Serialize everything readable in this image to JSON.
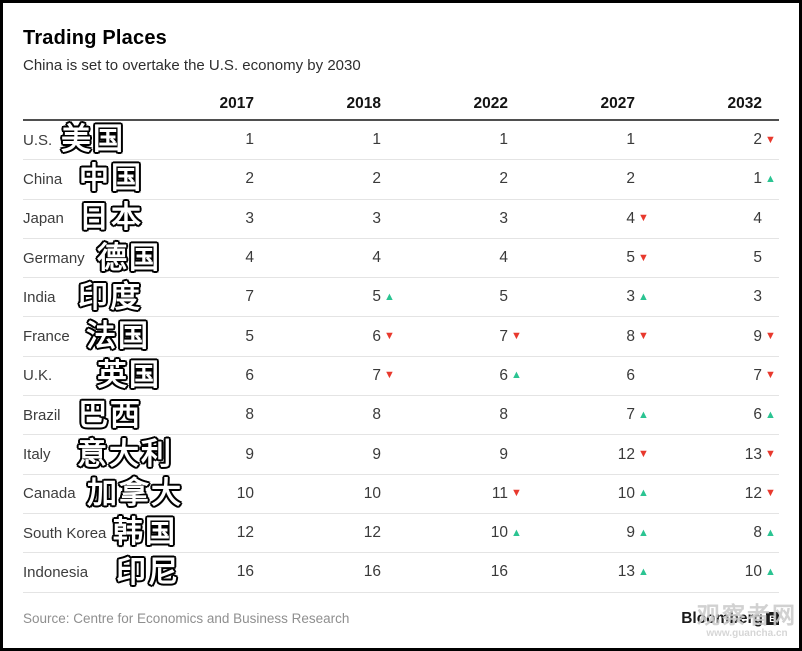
{
  "header": {
    "title": "Trading Places",
    "subtitle": "China is set to overtake the U.S. economy by 2030"
  },
  "table": {
    "year_headers": [
      "2017",
      "2018",
      "2022",
      "2027",
      "2032"
    ],
    "rows": [
      {
        "country": "U.S.",
        "zh": "美国",
        "cells": [
          {
            "v": "1"
          },
          {
            "v": "1"
          },
          {
            "v": "1"
          },
          {
            "v": "1"
          },
          {
            "v": "2",
            "dir": "down"
          }
        ]
      },
      {
        "country": "China",
        "zh": "中国",
        "cells": [
          {
            "v": "2"
          },
          {
            "v": "2"
          },
          {
            "v": "2"
          },
          {
            "v": "2"
          },
          {
            "v": "1",
            "dir": "up"
          }
        ]
      },
      {
        "country": "Japan",
        "zh": "日本",
        "cells": [
          {
            "v": "3"
          },
          {
            "v": "3"
          },
          {
            "v": "3"
          },
          {
            "v": "4",
            "dir": "down"
          },
          {
            "v": "4"
          }
        ]
      },
      {
        "country": "Germany",
        "zh": "德国",
        "cells": [
          {
            "v": "4"
          },
          {
            "v": "4"
          },
          {
            "v": "4"
          },
          {
            "v": "5",
            "dir": "down"
          },
          {
            "v": "5"
          }
        ]
      },
      {
        "country": "India",
        "zh": "印度",
        "cells": [
          {
            "v": "7"
          },
          {
            "v": "5",
            "dir": "up"
          },
          {
            "v": "5"
          },
          {
            "v": "3",
            "dir": "up"
          },
          {
            "v": "3"
          }
        ]
      },
      {
        "country": "France",
        "zh": "法国",
        "cells": [
          {
            "v": "5"
          },
          {
            "v": "6",
            "dir": "down"
          },
          {
            "v": "7",
            "dir": "down"
          },
          {
            "v": "8",
            "dir": "down"
          },
          {
            "v": "9",
            "dir": "down"
          }
        ]
      },
      {
        "country": "U.K.",
        "zh": "英国",
        "cells": [
          {
            "v": "6"
          },
          {
            "v": "7",
            "dir": "down"
          },
          {
            "v": "6",
            "dir": "up"
          },
          {
            "v": "6"
          },
          {
            "v": "7",
            "dir": "down"
          }
        ]
      },
      {
        "country": "Brazil",
        "zh": "巴西",
        "cells": [
          {
            "v": "8"
          },
          {
            "v": "8"
          },
          {
            "v": "8"
          },
          {
            "v": "7",
            "dir": "up"
          },
          {
            "v": "6",
            "dir": "up"
          }
        ]
      },
      {
        "country": "Italy",
        "zh": "意大利",
        "cells": [
          {
            "v": "9"
          },
          {
            "v": "9"
          },
          {
            "v": "9"
          },
          {
            "v": "12",
            "dir": "down"
          },
          {
            "v": "13",
            "dir": "down"
          }
        ]
      },
      {
        "country": "Canada",
        "zh": "加拿大",
        "cells": [
          {
            "v": "10"
          },
          {
            "v": "10"
          },
          {
            "v": "11",
            "dir": "down"
          },
          {
            "v": "10",
            "dir": "up"
          },
          {
            "v": "12",
            "dir": "down"
          }
        ]
      },
      {
        "country": "South Korea",
        "zh": "韩国",
        "cells": [
          {
            "v": "12"
          },
          {
            "v": "12"
          },
          {
            "v": "10",
            "dir": "up"
          },
          {
            "v": "9",
            "dir": "up"
          },
          {
            "v": "8",
            "dir": "up"
          }
        ]
      },
      {
        "country": "Indonesia",
        "zh": "印尼",
        "cells": [
          {
            "v": "16"
          },
          {
            "v": "16"
          },
          {
            "v": "16"
          },
          {
            "v": "13",
            "dir": "up"
          },
          {
            "v": "10",
            "dir": "up"
          }
        ]
      }
    ]
  },
  "footer": {
    "source": "Source: Centre for Economics and Business Research",
    "brand": "Bloomberg",
    "brand_mark": "B"
  },
  "watermark": {
    "line1": "观察者网",
    "line2": "www.guancha.cn"
  },
  "icons": {
    "up": "▲",
    "down": "▼"
  },
  "colors": {
    "up_green": "#2bc492",
    "down_red": "#e8392d",
    "header_rule": "#4f4f4f",
    "row_rule": "#e4e4e4"
  },
  "chart_data": {
    "type": "table",
    "title": "Trading Places",
    "subtitle": "China is set to overtake the U.S. economy by 2030",
    "columns": [
      "2017",
      "2018",
      "2022",
      "2027",
      "2032"
    ],
    "row_labels": [
      "U.S.",
      "China",
      "Japan",
      "Germany",
      "India",
      "France",
      "U.K.",
      "Brazil",
      "Italy",
      "Canada",
      "South Korea",
      "Indonesia"
    ],
    "values": [
      [
        1,
        1,
        1,
        1,
        2
      ],
      [
        2,
        2,
        2,
        2,
        1
      ],
      [
        3,
        3,
        3,
        4,
        4
      ],
      [
        4,
        4,
        4,
        5,
        5
      ],
      [
        7,
        5,
        5,
        3,
        3
      ],
      [
        5,
        6,
        7,
        8,
        9
      ],
      [
        6,
        7,
        6,
        6,
        7
      ],
      [
        8,
        8,
        8,
        7,
        6
      ],
      [
        9,
        9,
        9,
        12,
        13
      ],
      [
        10,
        10,
        11,
        10,
        12
      ],
      [
        12,
        12,
        10,
        9,
        8
      ],
      [
        16,
        16,
        16,
        13,
        10
      ]
    ],
    "change_markers": [
      [
        "",
        "",
        "",
        "",
        "down"
      ],
      [
        "",
        "",
        "",
        "",
        "up"
      ],
      [
        "",
        "",
        "",
        "down",
        ""
      ],
      [
        "",
        "",
        "",
        "down",
        ""
      ],
      [
        "",
        "up",
        "",
        "up",
        ""
      ],
      [
        "",
        "down",
        "down",
        "down",
        "down"
      ],
      [
        "",
        "down",
        "up",
        "",
        "down"
      ],
      [
        "",
        "",
        "",
        "up",
        "up"
      ],
      [
        "",
        "",
        "",
        "down",
        "down"
      ],
      [
        "",
        "",
        "down",
        "up",
        "down"
      ],
      [
        "",
        "",
        "up",
        "up",
        "up"
      ],
      [
        "",
        "",
        "",
        "up",
        "up"
      ]
    ],
    "annotations_zh": [
      "美国",
      "中国",
      "日本",
      "德国",
      "印度",
      "法国",
      "英国",
      "巴西",
      "意大利",
      "加拿大",
      "韩国",
      "印尼"
    ],
    "source": "Source: Centre for Economics and Business Research",
    "legend": "red down-triangle = rank fell, green up-triangle = rank rose"
  }
}
